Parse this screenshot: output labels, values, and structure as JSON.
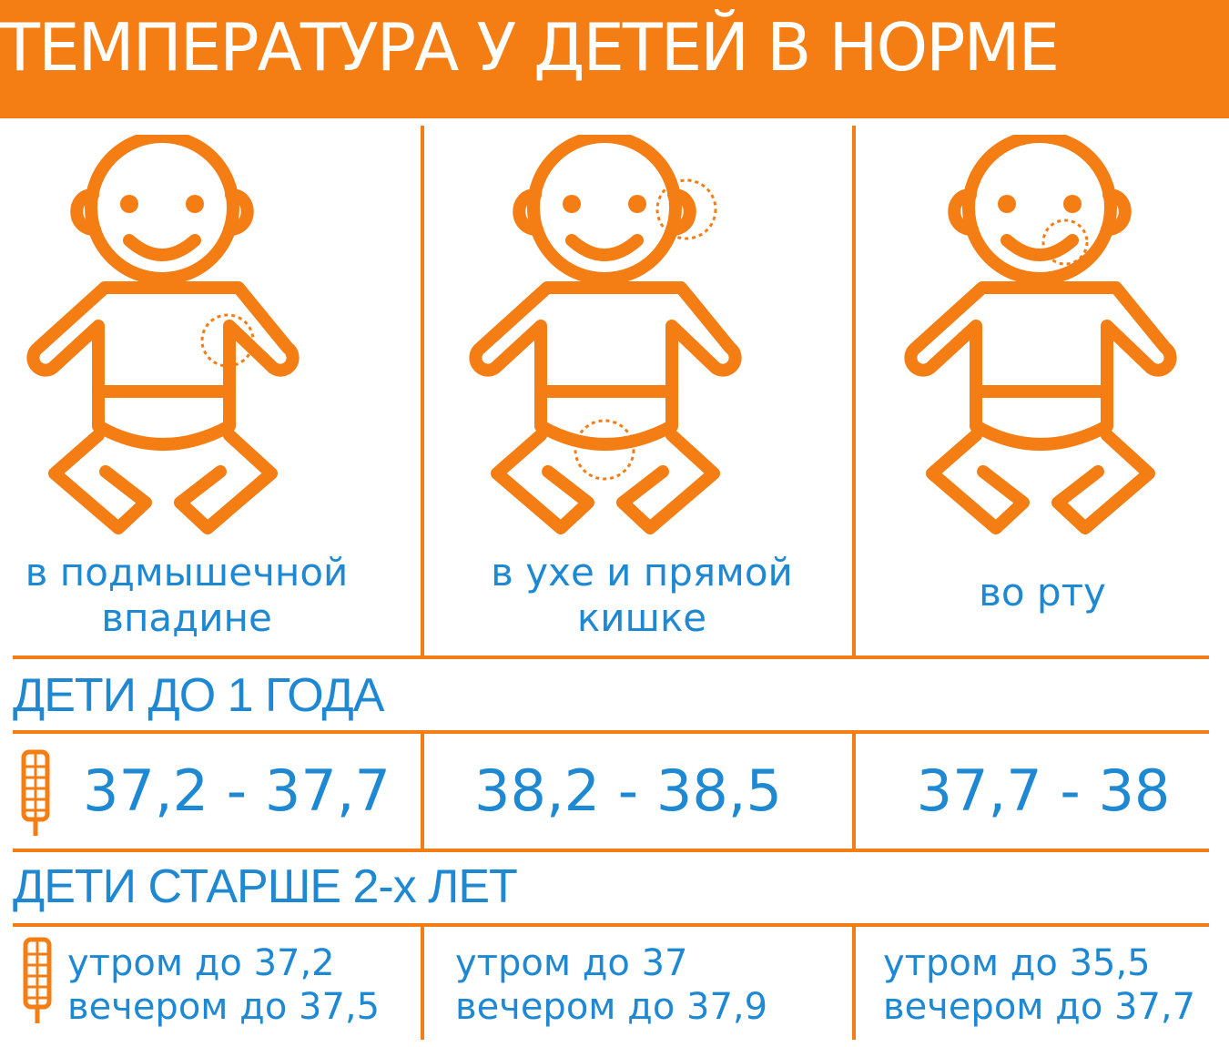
{
  "title": "ТЕМПЕРАТУРА У ДЕТЕЙ В НОРМЕ",
  "colors": {
    "accent": "#F47D14",
    "text": "#1E88D2",
    "background": "#FFFFFF"
  },
  "columns": [
    {
      "line1": "в подмышечной",
      "line2": "впадине",
      "icon": "baby-armpit-icon"
    },
    {
      "line1": "в ухе и прямой",
      "line2": "кишке",
      "icon": "baby-ear-rectum-icon"
    },
    {
      "line1": "во рту",
      "line2": "",
      "icon": "baby-mouth-icon"
    }
  ],
  "under_one": {
    "heading": "ДЕТИ ДО 1 ГОДА",
    "values": [
      "37,2 - 37,7",
      "38,2 - 38,5",
      "37,7 - 38"
    ]
  },
  "over_two": {
    "heading": "ДЕТИ СТАРШЕ 2-х ЛЕТ",
    "morning": [
      "утром до 37,2",
      "утром до 37",
      "утром до 35,5"
    ],
    "evening": [
      "вечером до 37,5",
      "вечером до 37,9",
      "вечером до 37,7"
    ]
  }
}
